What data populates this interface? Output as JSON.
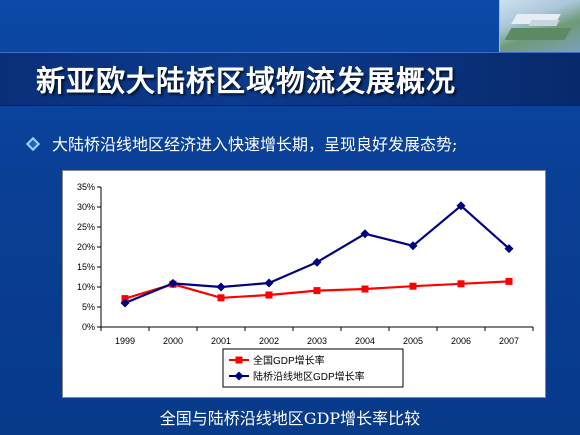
{
  "slide": {
    "title": "新亚欧大陆桥区域物流发展概况",
    "bullet_text": "大陆桥沿线地区经济进入快速增长期，呈现良好发展态势;",
    "caption": "全国与陆桥沿线地区GDP增长率比较"
  },
  "chart_data": {
    "type": "line",
    "categories": [
      "1999",
      "2000",
      "2001",
      "2002",
      "2003",
      "2004",
      "2005",
      "2006",
      "2007"
    ],
    "y_tick_labels": [
      "0%",
      "5%",
      "10%",
      "15%",
      "20%",
      "25%",
      "30%",
      "35%"
    ],
    "ylim": [
      0,
      35
    ],
    "grid": false,
    "legend_position": "bottom",
    "series": [
      {
        "name": "全国GDP增长率",
        "color": "#ff0000",
        "marker": "square",
        "values": [
          7.1,
          10.7,
          7.3,
          8.0,
          9.1,
          9.5,
          10.2,
          10.8,
          11.4
        ]
      },
      {
        "name": "陆桥沿线地区GDP增长率",
        "color": "#000080",
        "marker": "diamond",
        "values": [
          6.0,
          10.9,
          10.0,
          11.0,
          16.2,
          23.3,
          20.3,
          30.3,
          19.6
        ]
      }
    ]
  }
}
